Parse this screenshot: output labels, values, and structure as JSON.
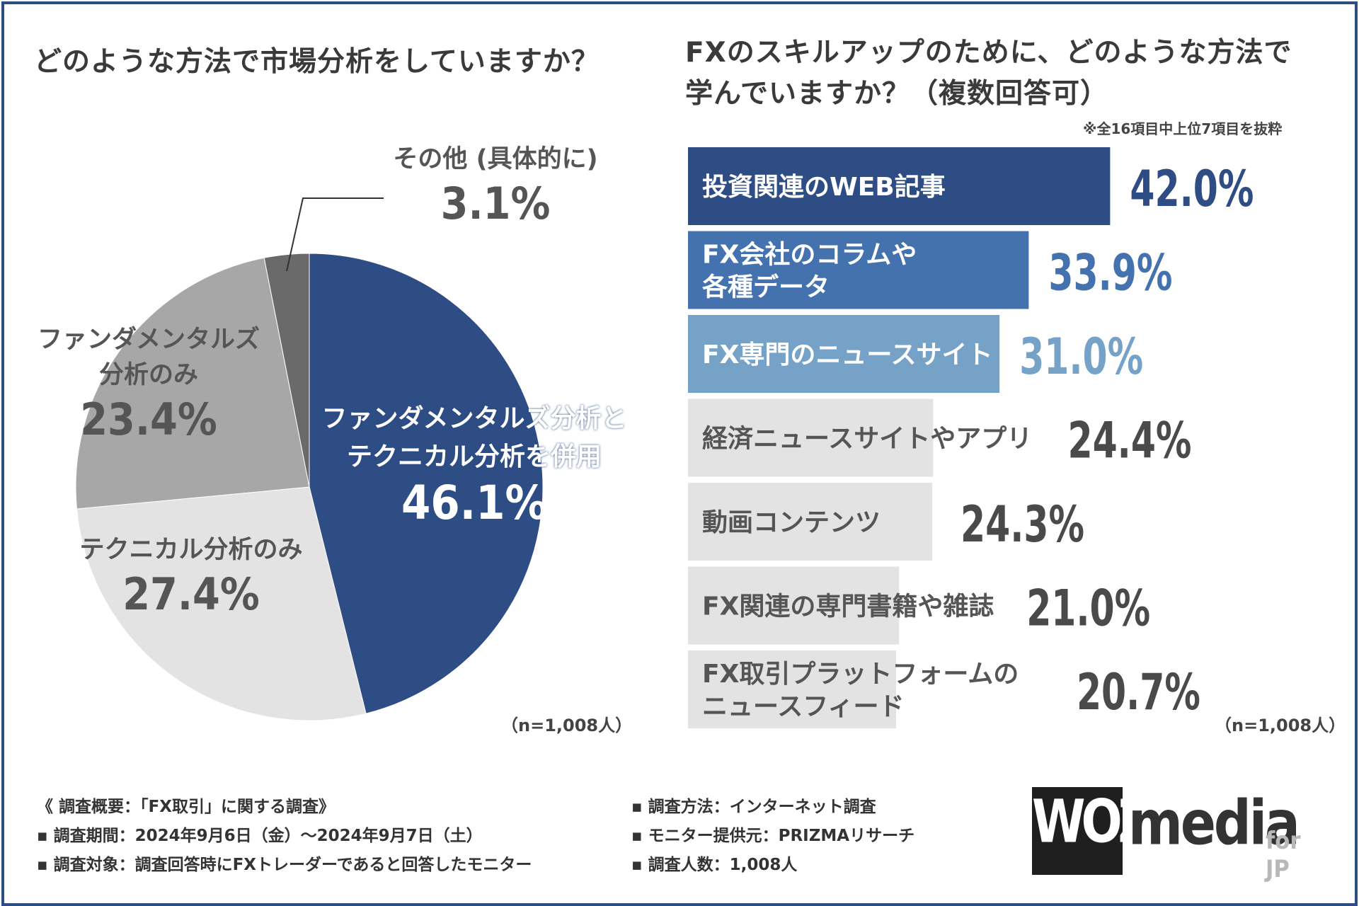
{
  "left_chart": {
    "title": "どのような方法で市場分析をしていますか？",
    "sample_note": "（n=1,008人）"
  },
  "right_chart": {
    "title_line1": "FXのスキルアップのために、どのような方法で",
    "title_line2": "学んでいますか？（複数回答可）",
    "note": "※全16項目中上位7項目を抜粋",
    "sample_note": "（n=1,008人）"
  },
  "chart_data": [
    {
      "type": "pie",
      "title": "どのような方法で市場分析をしていますか？",
      "slices": [
        {
          "label": "ファンダメンタルズ分析とテクニカル分析を併用",
          "label_line1": "ファンダメンタルズ分析と",
          "label_line2": "テクニカル分析を併用",
          "value": 46.1,
          "value_text": "46.1%",
          "color": "#2e4d85"
        },
        {
          "label": "テクニカル分析のみ",
          "value": 27.4,
          "value_text": "27.4%",
          "color": "#e3e3e3"
        },
        {
          "label": "ファンダメンタルズ分析のみ",
          "label_line1": "ファンダメンタルズ",
          "label_line2": "分析のみ",
          "value": 23.4,
          "value_text": "23.4%",
          "color": "#a7a7a7"
        },
        {
          "label": "その他 (具体的に)",
          "value": 3.1,
          "value_text": "3.1%",
          "color": "#6a6a6a"
        }
      ]
    },
    {
      "type": "bar",
      "orientation": "horizontal",
      "title": "FXのスキルアップのために、どのような方法で学んでいますか？（複数回答可）",
      "categories": [
        [
          "投資関連のWEB記事"
        ],
        [
          "FX会社のコラムや",
          "各種データ"
        ],
        [
          "FX専門のニュースサイト"
        ],
        [
          "経済ニュースサイトやアプリ"
        ],
        [
          "動画コンテンツ"
        ],
        [
          "FX関連の専門書籍や雑誌"
        ],
        [
          "FX取引プラットフォームの",
          "ニュースフィード"
        ]
      ],
      "values": [
        42.0,
        33.9,
        31.0,
        24.4,
        24.3,
        21.0,
        20.7
      ],
      "value_labels": [
        "42.0%",
        "33.9%",
        "31.0%",
        "24.4%",
        "24.3%",
        "21.0%",
        "20.7%"
      ],
      "bar_colors": [
        "#2e4d85",
        "#4472ae",
        "#76a2c8",
        "#e3e3e3",
        "#e3e3e3",
        "#e3e3e3",
        "#e3e3e3"
      ],
      "value_colors": [
        "#2e4d85",
        "#4472ae",
        "#76a2c8",
        "#4a4a4a",
        "#4a4a4a",
        "#4a4a4a",
        "#4a4a4a"
      ],
      "label_colors": [
        "#ffffff",
        "#ffffff",
        "#ffffff",
        "#555555",
        "#555555",
        "#555555",
        "#555555"
      ]
    }
  ],
  "survey": {
    "heading": "《 調査概要：「FX取引」に関する調査》",
    "period": "▪ 調査期間：2024年9月6日（金）～2024年9月7日（土）",
    "target": "▪ 調査対象：調査回答時にFXトレーダーであると回答したモニター",
    "method": "▪ 調査方法：インターネット調査",
    "provider": "▪ モニター提供元：PRIZMAリサーチ",
    "count": "▪ 調査人数：1,008人"
  },
  "logo": {
    "text": "WOZ media for JP"
  }
}
